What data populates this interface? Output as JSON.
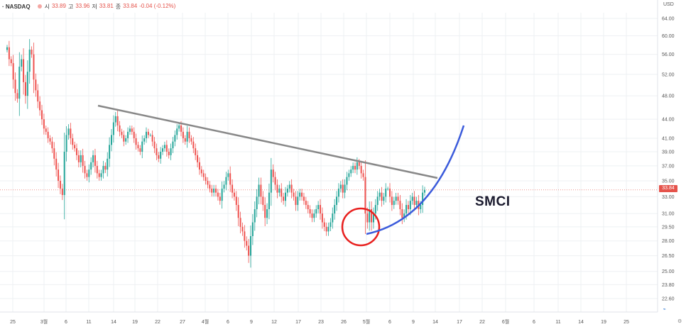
{
  "header": {
    "symbol_prefix": "· NASDAQ",
    "ohlc": [
      {
        "k": "시",
        "v": "33.89"
      },
      {
        "k": "고",
        "v": "33.96"
      },
      {
        "k": "저",
        "v": "33.81"
      },
      {
        "k": "종",
        "v": "33.84"
      }
    ],
    "change": "-0.04 (-0.12%)"
  },
  "currency": "USD",
  "last_price": "33.84",
  "annotation": "SMCI",
  "colors": {
    "up": "#26a69a",
    "down": "#ef5350",
    "trendline": "#888888",
    "curve": "#3b5bdb",
    "circle": "#e8201e",
    "grid": "#eef0f3",
    "last": "#e5534b"
  },
  "chart_data": {
    "type": "candlestick",
    "title": "",
    "xlabel": "",
    "ylabel": "",
    "y_ticks": [
      22.6,
      23.8,
      25.0,
      26.5,
      28.0,
      29.5,
      31.0,
      33.0,
      35.0,
      37.0,
      39.0,
      41.0,
      44.0,
      48.0,
      52.0,
      56.0,
      60.0,
      64.0
    ],
    "y_tick_labels": [
      "22.60",
      "23.80",
      "25.00",
      "26.50",
      "28.00",
      "29.50",
      "31.00",
      "33.00",
      "35.00",
      "37.00",
      "39.00",
      "41.00",
      "44.00",
      "48.00",
      "52.00",
      "56.00",
      "60.00",
      "64.00"
    ],
    "x_tick_labels": [
      "25",
      "3월",
      "6",
      "11",
      "14",
      "19",
      "22",
      "27",
      "4월",
      "6",
      "9",
      "12",
      "17",
      "23",
      "26",
      "5월",
      "6",
      "9",
      "14",
      "17",
      "22",
      "6월",
      "6",
      "11",
      "14",
      "19",
      "25"
    ],
    "ylim": [
      21.0,
      68.0
    ],
    "scale": "log",
    "closes": [
      57.5,
      55.0,
      54.2,
      51.0,
      48.5,
      47.5,
      53.5,
      55.0,
      50.5,
      48.0,
      52.5,
      57.0,
      56.0,
      51.0,
      49.0,
      47.0,
      45.5,
      44.0,
      42.5,
      42.0,
      41.0,
      40.5,
      39.5,
      38.0,
      36.5,
      35.0,
      34.0,
      33.2,
      39.0,
      41.5,
      42.5,
      41.0,
      40.0,
      39.5,
      38.5,
      37.5,
      38.5,
      37.0,
      36.0,
      35.5,
      36.5,
      37.5,
      38.5,
      37.0,
      36.0,
      35.5,
      36.0,
      37.0,
      36.5,
      38.0,
      40.0,
      41.5,
      43.5,
      44.5,
      43.0,
      42.0,
      41.5,
      40.5,
      41.0,
      42.0,
      42.5,
      42.0,
      41.0,
      40.0,
      39.5,
      39.0,
      40.5,
      41.0,
      42.0,
      41.5,
      41.5,
      40.5,
      39.5,
      38.5,
      38.0,
      39.0,
      39.5,
      40.0,
      39.0,
      38.5,
      39.5,
      40.5,
      41.5,
      42.5,
      43.0,
      42.0,
      41.0,
      40.5,
      42.0,
      41.0,
      40.5,
      39.5,
      38.5,
      37.5,
      36.5,
      36.0,
      35.5,
      35.0,
      34.5,
      34.0,
      33.5,
      34.0,
      33.5,
      33.0,
      32.5,
      34.0,
      34.5,
      35.5,
      36.0,
      34.5,
      33.5,
      33.0,
      32.0,
      30.5,
      29.5,
      29.0,
      28.0,
      27.5,
      26.5,
      28.5,
      30.0,
      31.5,
      33.0,
      34.5,
      33.0,
      32.0,
      30.5,
      31.5,
      33.5,
      36.5,
      35.5,
      34.5,
      33.5,
      34.0,
      33.0,
      32.5,
      33.5,
      34.0,
      34.5,
      33.5,
      33.0,
      32.0,
      33.0,
      33.5,
      33.0,
      32.5,
      32.0,
      31.5,
      31.0,
      30.5,
      31.0,
      31.5,
      32.0,
      31.0,
      30.0,
      29.5,
      29.0,
      29.5,
      30.0,
      31.0,
      32.0,
      33.0,
      34.0,
      34.5,
      33.5,
      34.5,
      35.5,
      36.0,
      36.5,
      37.0,
      36.5,
      37.5,
      37.0,
      36.0,
      35.5,
      31.0,
      30.0,
      31.5,
      30.0,
      31.0,
      32.0,
      33.0,
      33.5,
      32.5,
      33.0,
      34.0,
      34.0,
      33.0,
      32.0,
      32.5,
      33.0,
      32.5,
      31.5,
      30.5,
      31.0,
      32.0,
      31.5,
      32.5,
      33.0,
      32.0,
      32.5,
      31.5,
      32.0,
      33.5,
      33.84
    ],
    "trendline_label": "",
    "last_value": 33.84
  }
}
